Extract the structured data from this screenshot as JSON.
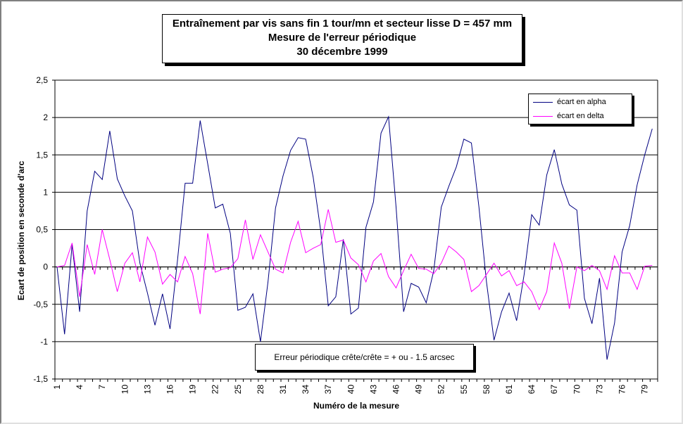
{
  "chart_data": {
    "type": "line",
    "title_lines": [
      "Entraînement par vis sans fin 1 tour/mn et secteur lisse D = 457 mm",
      "Mesure de l'erreur périodique",
      "30 décembre 1999"
    ],
    "xlabel": "Numéro de la mesure",
    "ylabel": "Ecart de position en seconde d'arc",
    "ylim": [
      -1.5,
      2.5
    ],
    "xlim": [
      1,
      80
    ],
    "y_ticks": [
      "2,5",
      "2",
      "1,5",
      "1",
      "0,5",
      "0",
      "-0,5",
      "-1",
      "-1,5"
    ],
    "x_ticks": [
      1,
      4,
      7,
      10,
      13,
      16,
      19,
      22,
      25,
      28,
      31,
      34,
      37,
      40,
      43,
      46,
      49,
      52,
      55,
      58,
      61,
      64,
      67,
      70,
      73,
      76,
      79
    ],
    "grid": "horizontal",
    "legend_placement": "top-right",
    "annotation": "Erreur périodique crête/crête = + ou - 1.5 arcsec",
    "series": [
      {
        "name": "écart en alpha",
        "color": "#000080",
        "values": [
          0,
          -0.9,
          0.3,
          -0.6,
          0.75,
          1.28,
          1.17,
          1.82,
          1.18,
          0.95,
          0.75,
          0.05,
          -0.35,
          -0.78,
          -0.36,
          -0.83,
          0.1,
          1.12,
          1.12,
          1.96,
          1.38,
          0.79,
          0.84,
          0.45,
          -0.58,
          -0.54,
          -0.36,
          -1.0,
          -0.2,
          0.79,
          1.22,
          1.56,
          1.73,
          1.71,
          1.2,
          0.48,
          -0.52,
          -0.4,
          0.37,
          -0.63,
          -0.55,
          0.53,
          0.87,
          1.79,
          2.01,
          0.8,
          -0.6,
          -0.22,
          -0.27,
          -0.48,
          -0.05,
          0.8,
          1.08,
          1.34,
          1.71,
          1.66,
          0.8,
          -0.2,
          -0.98,
          -0.6,
          -0.35,
          -0.72,
          -0.1,
          0.7,
          0.56,
          1.23,
          1.57,
          1.11,
          0.83,
          0.76,
          -0.42,
          -0.76,
          -0.15,
          -1.24,
          -0.75,
          0.2,
          0.55,
          1.1,
          1.5,
          1.85
        ]
      },
      {
        "name": "écart en delta",
        "color": "#ff00ff",
        "values": [
          0,
          0.02,
          0.32,
          -0.4,
          0.3,
          -0.1,
          0.5,
          0.1,
          -0.33,
          0.05,
          0.19,
          -0.2,
          0.4,
          0.2,
          -0.23,
          -0.1,
          -0.2,
          0.14,
          -0.09,
          -0.63,
          0.45,
          -0.07,
          -0.03,
          -0.01,
          0.11,
          0.63,
          0.1,
          0.43,
          0.2,
          -0.03,
          -0.08,
          0.33,
          0.61,
          0.19,
          0.25,
          0.3,
          0.77,
          0.33,
          0.36,
          0.12,
          0.03,
          -0.2,
          0.08,
          0.18,
          -0.13,
          -0.28,
          -0.05,
          0.17,
          -0.02,
          -0.03,
          -0.09,
          0.05,
          0.28,
          0.2,
          0.1,
          -0.33,
          -0.25,
          -0.1,
          0.05,
          -0.12,
          -0.05,
          -0.25,
          -0.2,
          -0.33,
          -0.57,
          -0.33,
          0.32,
          0.05,
          -0.56,
          0.0,
          -0.05,
          0.02,
          -0.05,
          -0.3,
          0.15,
          -0.08,
          -0.08,
          -0.3,
          0.01,
          0.02
        ]
      }
    ]
  }
}
